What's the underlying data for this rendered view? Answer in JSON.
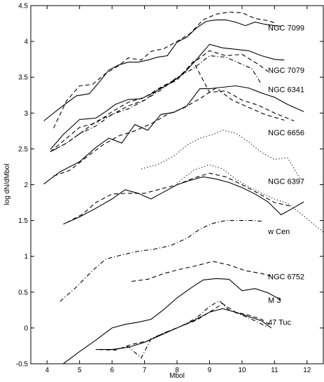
{
  "chart_data": {
    "type": "line",
    "title": "",
    "xlabel": "Mbol",
    "ylabel": "log dN/dMbol",
    "xlim": [
      3.5,
      12.5
    ],
    "ylim": [
      -0.5,
      4.5
    ],
    "xticks": [
      4,
      5,
      6,
      7,
      8,
      9,
      10,
      11,
      12
    ],
    "yticks": [
      -0.5,
      0,
      0.5,
      1,
      1.5,
      2,
      2.5,
      3,
      3.5,
      4,
      4.5
    ],
    "grid": false,
    "legend": "none",
    "colors": {
      "line": "#000000"
    },
    "annotations": [
      {
        "text": "NGC 7099",
        "x": 10.8,
        "y": 4.19
      },
      {
        "text": "NGC 7079",
        "x": 10.8,
        "y": 3.6
      },
      {
        "text": "NGC 6341",
        "x": 10.8,
        "y": 3.33
      },
      {
        "text": "NGC 6656",
        "x": 10.8,
        "y": 2.73
      },
      {
        "text": "NGC 6397",
        "x": 10.8,
        "y": 2.05
      },
      {
        "text": "w Cen",
        "x": 10.8,
        "y": 1.35
      },
      {
        "text": "NGC 6752",
        "x": 10.8,
        "y": 0.72
      },
      {
        "text": "M 3",
        "x": 10.8,
        "y": 0.39
      },
      {
        "text": "47 Tuc",
        "x": 10.8,
        "y": 0.08
      }
    ],
    "series": [
      {
        "style": "solid",
        "x": [
          3.9,
          4.4,
          4.9,
          5.3,
          5.6,
          5.9,
          6.2,
          6.5,
          6.8,
          7.1,
          7.4,
          7.7,
          8.0,
          8.3,
          8.6,
          8.9,
          9.2,
          9.5,
          9.8,
          10.1,
          10.4,
          10.7,
          11.0,
          11.2
        ],
        "y": [
          2.89,
          3.07,
          3.24,
          3.27,
          3.43,
          3.6,
          3.67,
          3.71,
          3.71,
          3.74,
          3.78,
          3.8,
          3.99,
          4.06,
          4.19,
          4.28,
          4.3,
          4.3,
          4.27,
          4.22,
          4.27,
          4.24,
          4.22,
          4.21
        ]
      },
      {
        "style": "dashed",
        "x": [
          4.2,
          4.6,
          5.0,
          5.4,
          5.8,
          6.2,
          6.5,
          6.9,
          7.2,
          7.6,
          8.0,
          8.4,
          8.8,
          9.2,
          9.6,
          10.0,
          10.4,
          10.8,
          11.0
        ],
        "y": [
          2.79,
          3.17,
          3.38,
          3.4,
          3.55,
          3.66,
          3.77,
          3.74,
          3.86,
          3.9,
          4.0,
          4.11,
          4.3,
          4.38,
          4.41,
          4.4,
          4.32,
          4.29,
          4.26
        ]
      },
      {
        "style": "solid",
        "x": [
          4.1,
          4.5,
          5.0,
          5.5,
          5.8,
          6.1,
          6.5,
          6.9,
          7.3,
          7.8,
          8.2,
          8.6,
          9.0,
          9.4,
          9.8,
          10.2,
          10.6,
          11.0,
          11.3
        ],
        "y": [
          2.49,
          2.7,
          2.91,
          2.93,
          3.02,
          3.12,
          3.19,
          3.2,
          3.29,
          3.42,
          3.55,
          3.75,
          3.96,
          3.91,
          3.89,
          3.87,
          3.8,
          3.75,
          3.74
        ]
      },
      {
        "style": "dashed",
        "x": [
          4.1,
          4.5,
          5.0,
          5.5,
          6.0,
          6.5,
          7.0,
          7.5,
          8.0,
          8.5,
          9.0,
          9.5,
          10.0,
          10.5,
          10.8
        ],
        "y": [
          2.46,
          2.61,
          2.8,
          2.86,
          3.02,
          3.15,
          3.22,
          3.36,
          3.48,
          3.7,
          3.87,
          3.8,
          3.82,
          3.68,
          3.58
        ]
      },
      {
        "style": "dashdot",
        "x": [
          4.2,
          4.6,
          5.0,
          5.5,
          6.0,
          6.5,
          7.0,
          7.5,
          8.0,
          8.5,
          9.0,
          9.5,
          10.0,
          10.3,
          10.6
        ],
        "y": [
          2.48,
          2.58,
          2.71,
          2.82,
          2.98,
          3.06,
          3.18,
          3.32,
          3.5,
          3.62,
          3.8,
          3.78,
          3.68,
          3.62,
          3.4
        ]
      },
      {
        "style": "solid",
        "x": [
          3.9,
          4.4,
          5.0,
          5.5,
          5.9,
          6.3,
          6.7,
          7.1,
          7.5,
          7.9,
          8.3,
          8.7,
          9.0,
          9.4,
          9.8,
          10.2,
          10.6,
          11.0,
          11.4,
          11.9
        ],
        "y": [
          2.01,
          2.18,
          2.32,
          2.52,
          2.65,
          2.58,
          2.84,
          2.76,
          2.98,
          3.01,
          3.1,
          3.34,
          3.34,
          3.36,
          3.38,
          3.35,
          3.28,
          3.22,
          3.12,
          3.02
        ]
      },
      {
        "style": "dashed",
        "x": [
          4.1,
          4.6,
          5.0,
          5.5,
          6.0,
          6.5,
          7.0,
          7.5,
          8.0,
          8.5,
          9.0,
          9.5,
          10.0,
          10.5,
          11.0,
          11.6
        ],
        "y": [
          2.46,
          2.58,
          2.71,
          2.88,
          2.98,
          3.1,
          3.18,
          3.35,
          3.46,
          3.72,
          3.29,
          3.31,
          3.18,
          3.11,
          3.0,
          2.89
        ]
      },
      {
        "style": "dashed",
        "x": [
          4.2,
          4.7,
          5.2,
          5.7,
          6.2,
          6.7,
          7.2,
          7.7,
          8.2,
          8.7,
          9.2,
          9.7,
          10.2,
          10.7,
          11.3
        ],
        "y": [
          2.12,
          2.2,
          2.38,
          2.55,
          2.68,
          2.75,
          2.85,
          2.98,
          3.07,
          3.2,
          3.35,
          3.18,
          3.08,
          2.98,
          2.9
        ]
      },
      {
        "style": "dotted",
        "x": [
          6.9,
          7.4,
          7.9,
          8.3,
          8.7,
          9.1,
          9.4,
          9.8,
          10.2,
          10.6,
          11.0,
          11.4,
          11.8
        ],
        "y": [
          2.22,
          2.28,
          2.4,
          2.55,
          2.65,
          2.7,
          2.76,
          2.72,
          2.6,
          2.45,
          2.35,
          2.38,
          2.07
        ]
      },
      {
        "style": "solid",
        "x": [
          4.5,
          5.0,
          5.5,
          6.0,
          6.4,
          6.8,
          7.2,
          7.6,
          8.0,
          8.4,
          8.8,
          9.2,
          9.6,
          10.0,
          10.4,
          10.8,
          11.2,
          11.6,
          11.9
        ],
        "y": [
          1.45,
          1.55,
          1.67,
          1.8,
          1.93,
          1.88,
          1.8,
          1.9,
          2.0,
          2.06,
          2.11,
          2.08,
          2.03,
          1.96,
          1.87,
          1.76,
          1.58,
          1.68,
          1.76
        ]
      },
      {
        "style": "dashed",
        "x": [
          4.6,
          5.1,
          5.5,
          6.0,
          6.5,
          7.0,
          7.5,
          8.0,
          8.5,
          9.0,
          9.5,
          10.0,
          10.5,
          11.0,
          11.5
        ],
        "y": [
          1.47,
          1.59,
          1.75,
          1.87,
          1.88,
          1.88,
          1.94,
          2.0,
          2.09,
          2.16,
          2.11,
          2.0,
          1.88,
          1.75,
          1.7
        ]
      },
      {
        "style": "dotted",
        "x": [
          8.0,
          8.5,
          9.0,
          9.4,
          9.8,
          10.2,
          10.6,
          11.0,
          11.4,
          11.8,
          12.2,
          12.5
        ],
        "y": [
          2.02,
          2.2,
          2.28,
          2.22,
          2.08,
          1.97,
          1.88,
          1.8,
          1.74,
          1.6,
          1.45,
          1.34
        ]
      },
      {
        "style": "dashdot",
        "x": [
          4.4,
          4.9,
          5.4,
          5.8,
          6.3,
          6.8,
          7.3,
          7.8,
          8.3,
          8.7,
          9.1,
          9.5,
          9.9,
          10.3,
          10.6
        ],
        "y": [
          0.37,
          0.57,
          0.8,
          0.96,
          1.02,
          1.07,
          1.1,
          1.15,
          1.25,
          1.38,
          1.46,
          1.5,
          1.5,
          1.5,
          1.49
        ]
      },
      {
        "style": "dashed",
        "x": [
          6.6,
          7.1,
          7.6,
          8.1,
          8.6,
          9.1,
          9.6,
          10.1,
          10.6,
          11.0
        ],
        "y": [
          0.65,
          0.68,
          0.76,
          0.82,
          0.87,
          0.93,
          0.88,
          0.8,
          0.76,
          0.71
        ]
      },
      {
        "style": "solid",
        "x": [
          4.5,
          5.0,
          5.5,
          6.0,
          6.4,
          6.8,
          7.2,
          7.6,
          8.0,
          8.4,
          8.8,
          9.2,
          9.6,
          10.0,
          10.4,
          10.8,
          11.2
        ],
        "y": [
          -0.5,
          -0.33,
          -0.17,
          0.0,
          0.05,
          0.08,
          0.12,
          0.26,
          0.42,
          0.55,
          0.67,
          0.69,
          0.68,
          0.52,
          0.55,
          0.49,
          0.39
        ]
      },
      {
        "style": "solid",
        "x": [
          5.5,
          6.0,
          6.5,
          7.0,
          7.5,
          8.0,
          8.5,
          9.0,
          9.4,
          9.8,
          10.2,
          10.6,
          10.9
        ],
        "y": [
          -0.3,
          -0.3,
          -0.27,
          -0.2,
          -0.1,
          0.0,
          0.1,
          0.22,
          0.27,
          0.22,
          0.16,
          0.1,
          0.0
        ]
      },
      {
        "style": "dashed",
        "x": [
          5.6,
          6.1,
          6.6,
          7.1,
          7.6,
          8.1,
          8.6,
          9.1,
          9.4,
          9.8,
          10.2,
          10.6,
          10.9
        ],
        "y": [
          -0.3,
          -0.31,
          -0.23,
          -0.18,
          -0.07,
          0.02,
          0.11,
          0.25,
          0.34,
          0.22,
          0.18,
          0.12,
          0.03
        ]
      },
      {
        "style": "dashdot",
        "x": [
          5.6,
          6.1,
          6.5,
          6.9,
          7.2,
          7.6,
          8.1,
          8.6,
          9.0,
          9.3,
          9.6,
          10.0,
          10.4,
          10.8
        ],
        "y": [
          -0.3,
          -0.3,
          -0.26,
          -0.42,
          -0.15,
          -0.07,
          0.02,
          0.14,
          0.3,
          0.38,
          0.25,
          0.18,
          0.1,
          0.01
        ]
      }
    ]
  }
}
